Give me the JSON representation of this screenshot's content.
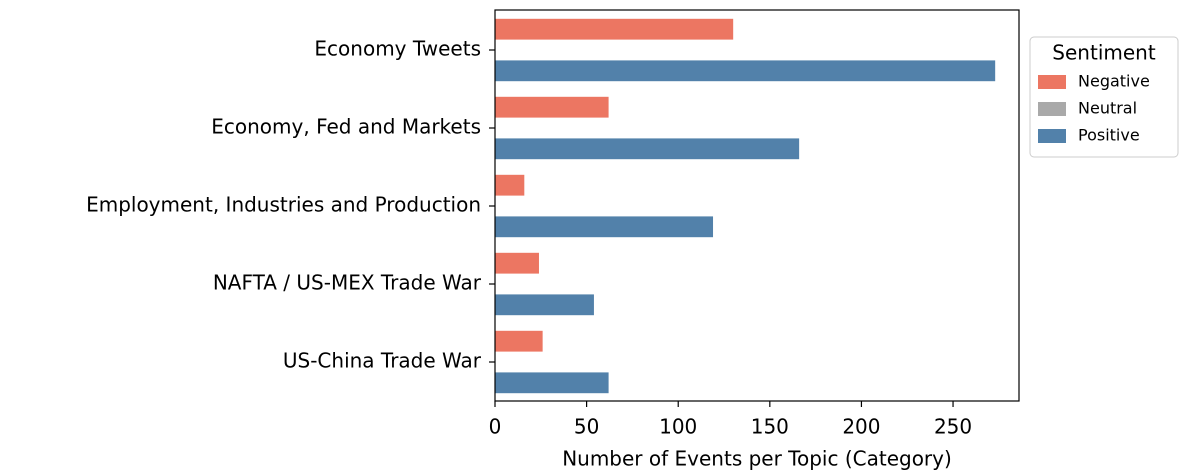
{
  "chart_data": {
    "type": "hbar",
    "categories": [
      "Economy Tweets",
      "Economy,  Fed and Markets",
      "Employment,  Industries and Production",
      "NAFTA / US-MEX Trade War",
      "US-China Trade War"
    ],
    "series": [
      {
        "name": "Negative",
        "color": "#ec7662",
        "values": [
          130,
          62,
          16,
          24,
          26
        ]
      },
      {
        "name": "Neutral",
        "color": "#a9a9a9",
        "values": [
          0,
          0,
          0,
          0,
          0
        ]
      },
      {
        "name": "Positive",
        "color": "#5281aa",
        "values": [
          273,
          166,
          119,
          54,
          62
        ]
      }
    ],
    "xlabel": "Number of Events per Topic (Category)",
    "legend_title": "Sentiment",
    "legend_position": "outside right",
    "xlim": [
      0,
      286
    ],
    "xticks": [
      0,
      50,
      100,
      150,
      200,
      250
    ]
  }
}
